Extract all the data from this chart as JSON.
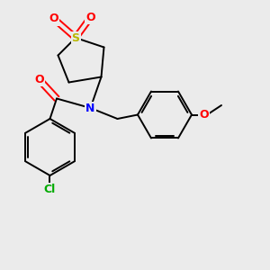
{
  "background_color": "#ebebeb",
  "bond_color": "#000000",
  "atom_colors": {
    "S": "#b8b800",
    "O": "#ff0000",
    "N": "#0000ff",
    "Cl": "#00aa00",
    "C": "#000000"
  },
  "figsize": [
    3.0,
    3.0
  ],
  "dpi": 100,
  "lw": 1.4
}
